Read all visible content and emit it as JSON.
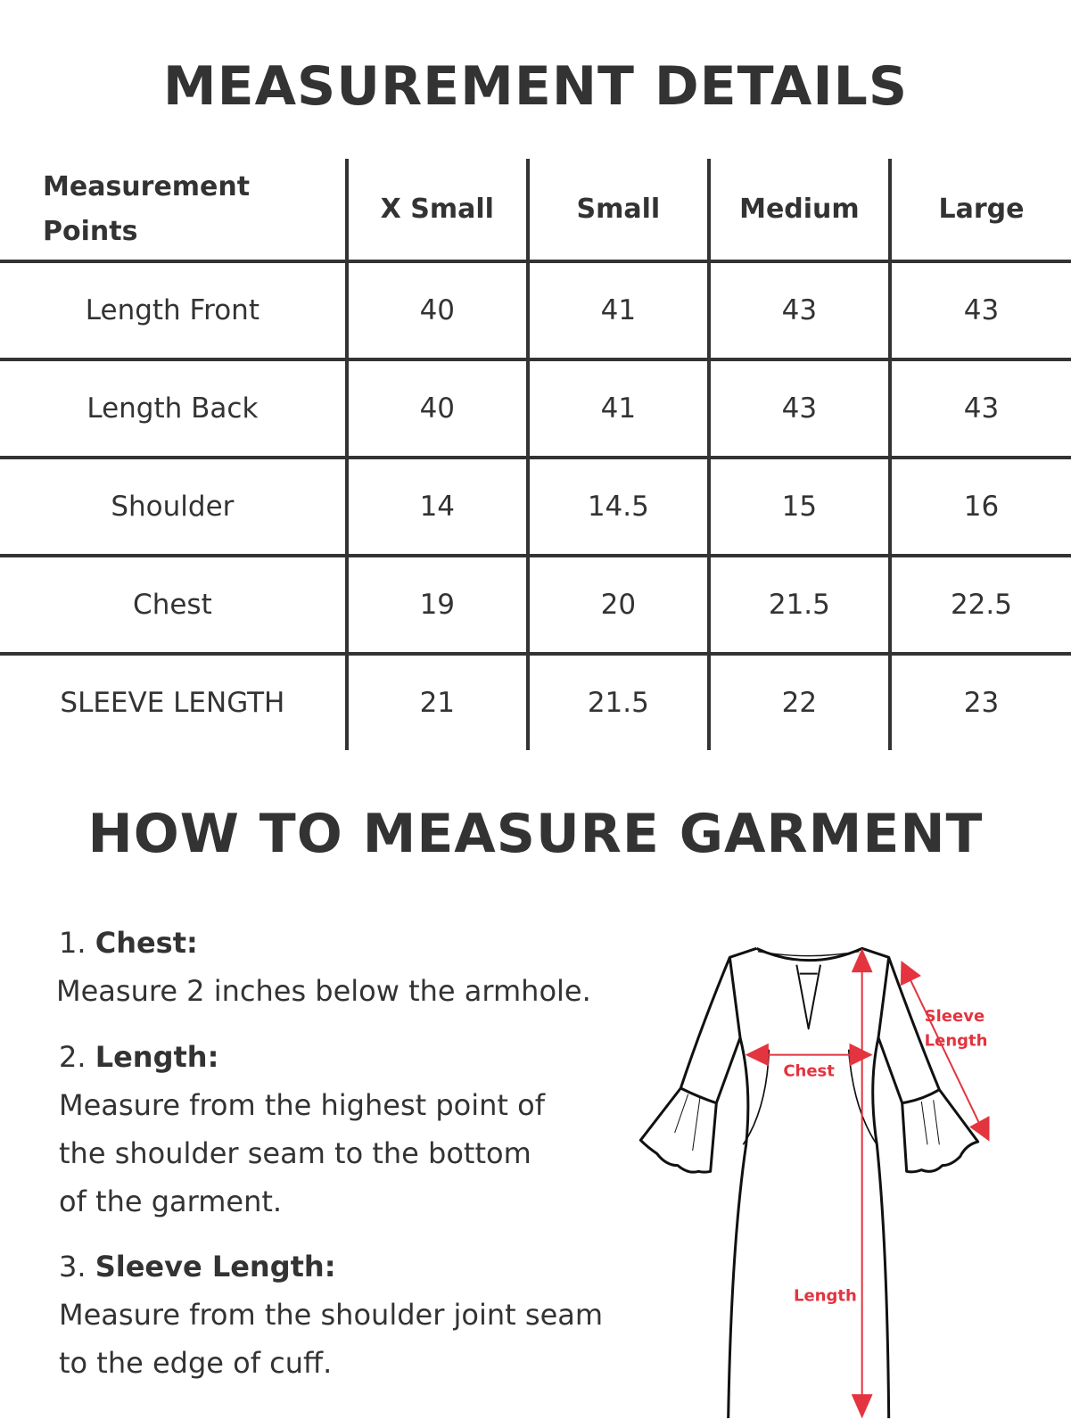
{
  "title": "MEASUREMENT DETAILS",
  "table": {
    "headers": [
      "Measurement Points",
      "X Small",
      "Small",
      "Medium",
      "Large"
    ],
    "rows": [
      [
        "Length Front",
        "40",
        "41",
        "43",
        "43"
      ],
      [
        "Length Back",
        "40",
        "41",
        "43",
        "43"
      ],
      [
        "Shoulder",
        "14",
        "14.5",
        "15",
        "16"
      ],
      [
        "Chest",
        "19",
        "20",
        "21.5",
        "22.5"
      ],
      [
        "SLEEVE LENGTH",
        "21",
        "21.5",
        "22",
        "23"
      ]
    ]
  },
  "how_title": "HOW TO MEASURE GARMENT",
  "instructions": [
    {
      "num": "1.",
      "label": "Chest:",
      "lines": [
        "Measure 2 inches  below the armhole."
      ]
    },
    {
      "num": "2.",
      "label": "Length:",
      "lines": [
        "Measure from the highest point of",
        "the shoulder seam to the bottom",
        "of the garment."
      ]
    },
    {
      "num": "3.",
      "label": "Sleeve Length:",
      "lines": [
        "Measure from the shoulder joint seam",
        "to the edge of cuff."
      ]
    }
  ],
  "diagram": {
    "chest_label": "Chest",
    "length_label": "Length",
    "sleeve_label_1": "Sleeve",
    "sleeve_label_2": "Length",
    "accent_color": "#e3343f"
  }
}
